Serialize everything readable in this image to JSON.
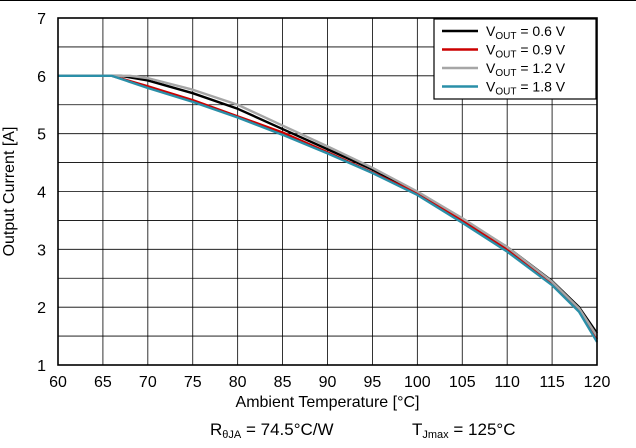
{
  "chart_data": {
    "type": "line",
    "xlabel": "Ambient Temperature [°C]",
    "ylabel": "Output Current [A]",
    "xlim": [
      60,
      120
    ],
    "ylim": [
      1,
      7
    ],
    "xticks": [
      60,
      65,
      70,
      75,
      80,
      85,
      90,
      95,
      100,
      105,
      110,
      115,
      120
    ],
    "yticks": [
      1,
      2,
      3,
      4,
      5,
      6,
      7
    ],
    "grid": true,
    "legend_position": "top-right",
    "series": [
      {
        "name": "VOUT = 0.6 V",
        "name_main": "V",
        "name_sub": "OUT",
        "name_rest": " = 0.6 V",
        "color": "#000000",
        "x": [
          60,
          65,
          67,
          70,
          75,
          80,
          85,
          90,
          95,
          100,
          105,
          110,
          115,
          118,
          120
        ],
        "y": [
          6.0,
          6.0,
          6.0,
          5.92,
          5.7,
          5.43,
          5.08,
          4.73,
          4.38,
          3.98,
          3.52,
          3.04,
          2.45,
          2.0,
          1.55
        ]
      },
      {
        "name": "VOUT = 0.9 V",
        "name_main": "V",
        "name_sub": "OUT",
        "name_rest": " = 0.9 V",
        "color": "#cc0000",
        "x": [
          60,
          65,
          66,
          70,
          75,
          80,
          85,
          90,
          95,
          100,
          105,
          110,
          115,
          118,
          120
        ],
        "y": [
          6.0,
          6.0,
          6.0,
          5.82,
          5.58,
          5.3,
          5.02,
          4.68,
          4.33,
          3.97,
          3.5,
          3.0,
          2.4,
          1.95,
          1.45
        ]
      },
      {
        "name": "VOUT = 1.2 V",
        "name_main": "V",
        "name_sub": "OUT",
        "name_rest": " = 1.2 V",
        "color": "#a6a6a6",
        "x": [
          60,
          65,
          68,
          70,
          75,
          80,
          85,
          90,
          95,
          100,
          105,
          110,
          115,
          118,
          120
        ],
        "y": [
          6.0,
          6.0,
          6.0,
          5.96,
          5.76,
          5.5,
          5.14,
          4.78,
          4.41,
          4.0,
          3.54,
          3.04,
          2.44,
          1.98,
          1.5
        ]
      },
      {
        "name": "VOUT = 1.8 V",
        "name_main": "V",
        "name_sub": "OUT",
        "name_rest": " = 1.8 V",
        "color": "#2a8fa8",
        "x": [
          60,
          65,
          66,
          70,
          75,
          80,
          85,
          90,
          95,
          100,
          105,
          110,
          115,
          118,
          120
        ],
        "y": [
          6.0,
          6.0,
          6.0,
          5.79,
          5.55,
          5.28,
          4.98,
          4.66,
          4.32,
          3.94,
          3.46,
          2.96,
          2.38,
          1.92,
          1.4
        ]
      }
    ]
  },
  "footnotes": {
    "rtheta": {
      "main": "R",
      "sub": "θJA",
      "rest": " = 74.5°C/W"
    },
    "tjmax": {
      "main": "T",
      "sub": "Jmax",
      "rest": " = 125°C"
    }
  }
}
